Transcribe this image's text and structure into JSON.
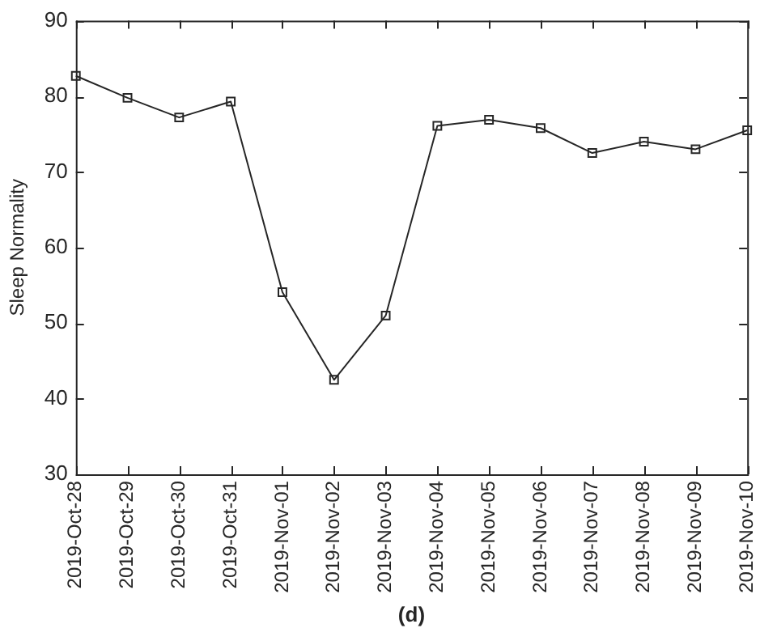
{
  "chart_data": {
    "type": "line",
    "xlabel": "(d)",
    "ylabel": "Sleep Normality",
    "categories": [
      "2019-Oct-28",
      "2019-Oct-29",
      "2019-Oct-30",
      "2019-Oct-31",
      "2019-Nov-01",
      "2019-Nov-02",
      "2019-Nov-03",
      "2019-Nov-04",
      "2019-Nov-05",
      "2019-Nov-06",
      "2019-Nov-07",
      "2019-Nov-08",
      "2019-Nov-09",
      "2019-Nov-10"
    ],
    "series": [
      {
        "color": "#262626",
        "values": [
          82.7,
          79.8,
          77.2,
          79.3,
          54.1,
          42.5,
          51.0,
          76.1,
          76.9,
          75.8,
          72.5,
          74.0,
          73.0,
          75.5
        ]
      }
    ],
    "ylim": [
      30,
      90
    ],
    "yticks": [
      30,
      40,
      50,
      60,
      70,
      80,
      90
    ],
    "grid": false,
    "legend": false,
    "marker": "square",
    "line_style": "solid"
  }
}
